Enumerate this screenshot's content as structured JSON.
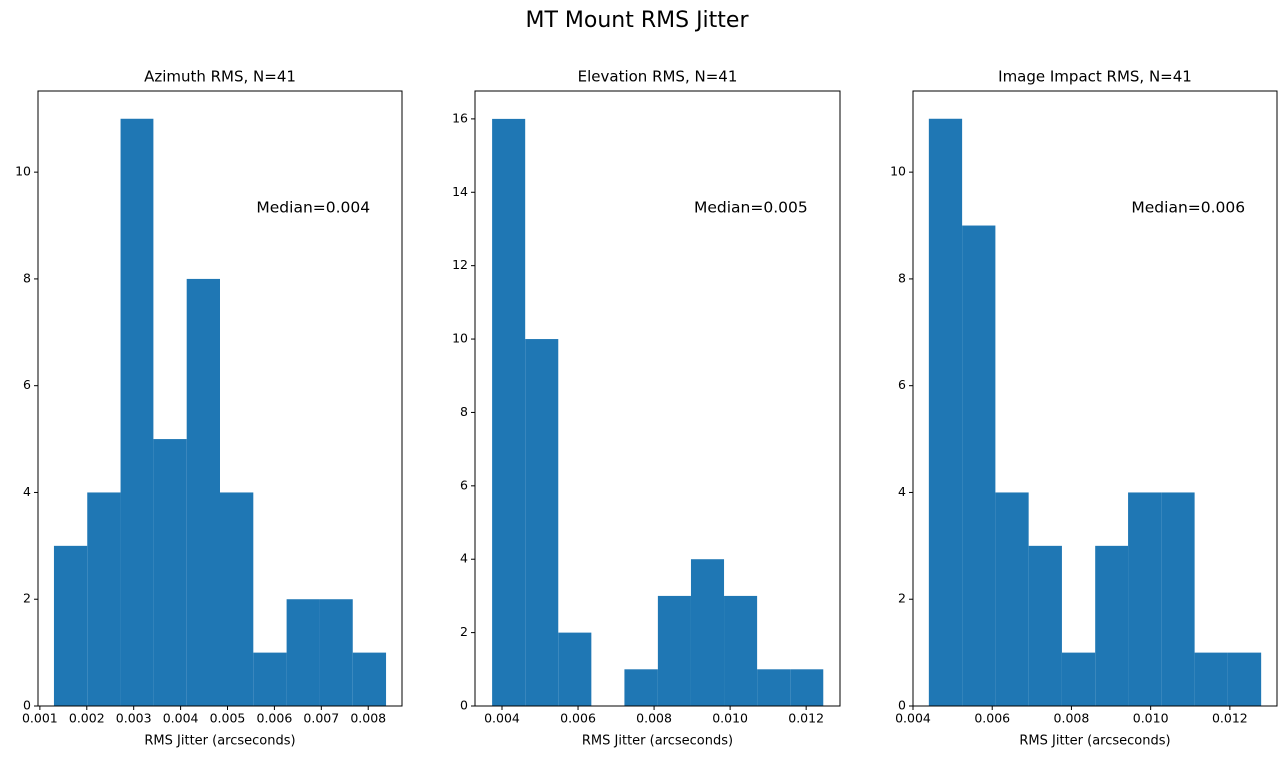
{
  "title": "MT Mount RMS Jitter",
  "chart_data": [
    {
      "type": "histogram",
      "title": "Azimuth RMS, N=41",
      "xlabel": "RMS Jitter (arcseconds)",
      "annotation": "Median=0.004",
      "color": "#1f77b4",
      "bins": [
        0.0013,
        0.00201,
        0.00272,
        0.00342,
        0.00413,
        0.00484,
        0.00555,
        0.00626,
        0.00696,
        0.00767,
        0.00838
      ],
      "values": [
        3,
        4,
        11,
        5,
        8,
        4,
        1,
        2,
        2,
        1
      ],
      "xlim": [
        0.00096,
        0.00872
      ],
      "ylim": [
        0,
        11.52
      ],
      "xticks": [
        0.001,
        0.002,
        0.003,
        0.004,
        0.005,
        0.006,
        0.007,
        0.008
      ],
      "yticks": [
        0,
        2,
        4,
        6,
        8,
        10
      ]
    },
    {
      "type": "histogram",
      "title": "Elevation RMS, N=41",
      "xlabel": "RMS Jitter (arcseconds)",
      "annotation": "Median=0.005",
      "color": "#1f77b4",
      "bins": [
        0.00374,
        0.00461,
        0.00548,
        0.00635,
        0.00722,
        0.0081,
        0.00897,
        0.00984,
        0.01071,
        0.01158,
        0.01245
      ],
      "values": [
        16,
        10,
        2,
        0,
        1,
        3,
        4,
        3,
        1,
        1
      ],
      "xlim": [
        0.00329,
        0.01289
      ],
      "ylim": [
        0,
        16.76
      ],
      "xticks": [
        0.004,
        0.006,
        0.008,
        {
          "value": 0.01,
          "label": "0.010"
        },
        0.012
      ],
      "yticks": [
        0,
        2,
        4,
        6,
        8,
        10,
        12,
        14,
        16
      ]
    },
    {
      "type": "histogram",
      "title": "Image Impact RMS, N=41",
      "xlabel": "RMS Jitter (arcseconds)",
      "annotation": "Median=0.006",
      "color": "#1f77b4",
      "bins": [
        0.0044,
        0.00524,
        0.00608,
        0.00692,
        0.00776,
        0.0086,
        0.00943,
        0.01027,
        0.01111,
        0.01195,
        0.01279
      ],
      "values": [
        11,
        9,
        4,
        3,
        1,
        3,
        4,
        4,
        1,
        1
      ],
      "xlim": [
        0.004,
        0.01319
      ],
      "ylim": [
        0,
        11.52
      ],
      "xticks": [
        0.004,
        0.006,
        0.008,
        {
          "value": 0.01,
          "label": "0.010"
        },
        0.012
      ],
      "yticks": [
        0,
        2,
        4,
        6,
        8,
        10
      ]
    }
  ]
}
